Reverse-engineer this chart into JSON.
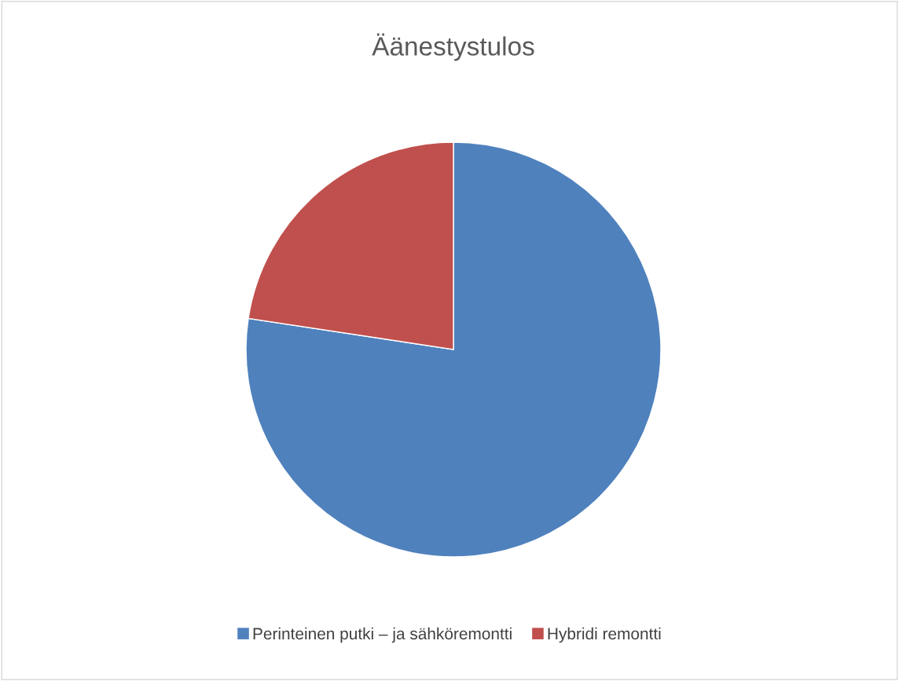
{
  "chart_data": {
    "type": "pie",
    "title": "Äänestystulos",
    "categories": [
      "Perinteinen putki – ja sähköremontti",
      "Hybridi remontti"
    ],
    "values": [
      77.4,
      22.6
    ],
    "colors": [
      "#4f81bd",
      "#c0504d"
    ],
    "legend": "bottom"
  }
}
